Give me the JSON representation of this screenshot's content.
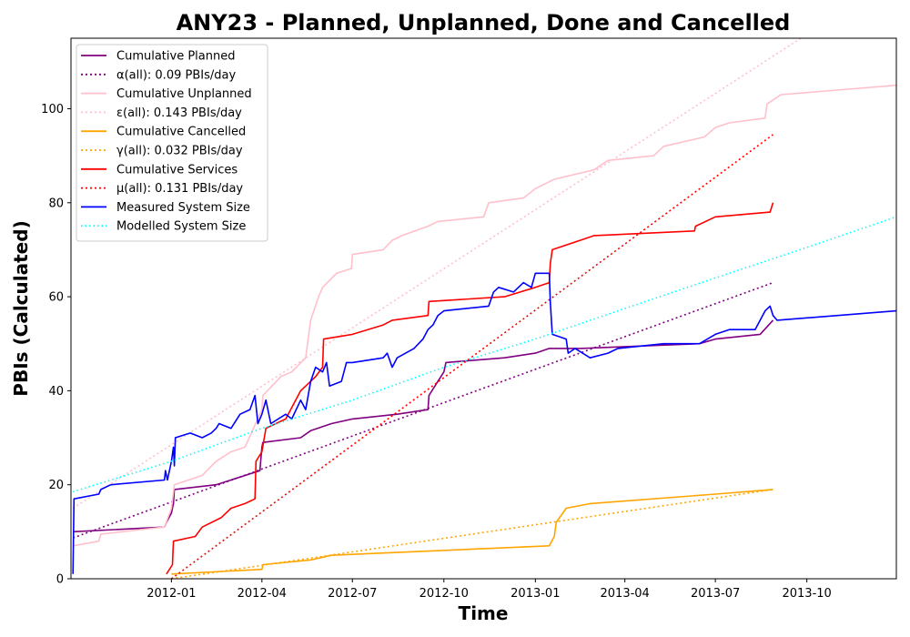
{
  "chart_data": {
    "type": "line",
    "title": "ANY23 - Planned, Unplanned, Done  and Cancelled",
    "xlabel": "Time",
    "ylabel": "PBIs (Calculated)",
    "xlim": [
      "2011-09-22",
      "2013-12-30"
    ],
    "ylim": [
      0,
      115
    ],
    "x_ticks": [
      "2012-01",
      "2012-04",
      "2012-07",
      "2012-10",
      "2013-01",
      "2013-04",
      "2013-07",
      "2013-10"
    ],
    "x_tick_dates": [
      "2012-01-01",
      "2012-04-01",
      "2012-07-01",
      "2012-10-01",
      "2013-01-01",
      "2013-04-01",
      "2013-07-01",
      "2013-10-01"
    ],
    "y_ticks": [
      0,
      20,
      40,
      60,
      80,
      100
    ],
    "grid": false,
    "legend_position": "top-left",
    "series": [
      {
        "name": "Cumulative Planned",
        "color": "#800080",
        "style": "solid",
        "points": [
          [
            "2011-09-24",
            10
          ],
          [
            "2011-12-25",
            11
          ],
          [
            "2011-12-27",
            12
          ],
          [
            "2012-01-01",
            14
          ],
          [
            "2012-01-03",
            16
          ],
          [
            "2012-01-04",
            19
          ],
          [
            "2012-02-15",
            20
          ],
          [
            "2012-03-30",
            23
          ],
          [
            "2012-04-01",
            28
          ],
          [
            "2012-04-02",
            29
          ],
          [
            "2012-05-10",
            30
          ],
          [
            "2012-05-20",
            31.5
          ],
          [
            "2012-06-10",
            33
          ],
          [
            "2012-07-01",
            34
          ],
          [
            "2012-08-15",
            35
          ],
          [
            "2012-09-15",
            36
          ],
          [
            "2012-09-16",
            39
          ],
          [
            "2012-09-25",
            42
          ],
          [
            "2012-10-01",
            44
          ],
          [
            "2012-10-03",
            46
          ],
          [
            "2012-11-01",
            46.5
          ],
          [
            "2012-12-01",
            47
          ],
          [
            "2013-01-01",
            48
          ],
          [
            "2013-01-15",
            49
          ],
          [
            "2013-02-15",
            49
          ],
          [
            "2013-06-15",
            50
          ],
          [
            "2013-07-01",
            51
          ],
          [
            "2013-08-15",
            52
          ],
          [
            "2013-08-28",
            55
          ]
        ]
      },
      {
        "name": "α(all): 0.09 PBIs/day",
        "color": "#800080",
        "style": "dotted",
        "points": [
          [
            "2011-09-24",
            8.7
          ],
          [
            "2013-08-28",
            63
          ]
        ]
      },
      {
        "name": "Cumulative Unplanned",
        "color": "#ffc0cb",
        "style": "solid",
        "points": [
          [
            "2011-09-24",
            7
          ],
          [
            "2011-10-20",
            8
          ],
          [
            "2011-10-22",
            9.5
          ],
          [
            "2011-12-25",
            11
          ],
          [
            "2012-01-01",
            15
          ],
          [
            "2012-01-04",
            20
          ],
          [
            "2012-02-01",
            22
          ],
          [
            "2012-02-15",
            25
          ],
          [
            "2012-03-01",
            27
          ],
          [
            "2012-03-15",
            28
          ],
          [
            "2012-04-01",
            36
          ],
          [
            "2012-04-02",
            39
          ],
          [
            "2012-04-20",
            43
          ],
          [
            "2012-05-01",
            44
          ],
          [
            "2012-05-15",
            47
          ],
          [
            "2012-05-20",
            55
          ],
          [
            "2012-05-28",
            60
          ],
          [
            "2012-06-01",
            62
          ],
          [
            "2012-06-15",
            65
          ],
          [
            "2012-06-30",
            66
          ],
          [
            "2012-07-01",
            69
          ],
          [
            "2012-08-01",
            70
          ],
          [
            "2012-08-10",
            72
          ],
          [
            "2012-08-20",
            73
          ],
          [
            "2012-09-15",
            75
          ],
          [
            "2012-09-25",
            76
          ],
          [
            "2012-11-10",
            77
          ],
          [
            "2012-11-15",
            80
          ],
          [
            "2012-12-20",
            81
          ],
          [
            "2013-01-01",
            83
          ],
          [
            "2013-01-20",
            85
          ],
          [
            "2013-03-01",
            87
          ],
          [
            "2013-03-15",
            89
          ],
          [
            "2013-04-30",
            90
          ],
          [
            "2013-05-10",
            92
          ],
          [
            "2013-06-20",
            94
          ],
          [
            "2013-07-01",
            96
          ],
          [
            "2013-07-15",
            97
          ],
          [
            "2013-08-20",
            98
          ],
          [
            "2013-08-22",
            101
          ],
          [
            "2013-09-05",
            103
          ],
          [
            "2013-12-30",
            105
          ]
        ]
      },
      {
        "name": "ε(all): 0.143 PBIs/day",
        "color": "#ffc0cb",
        "style": "dotted",
        "points": [
          [
            "2011-09-24",
            15
          ],
          [
            "2013-09-25",
            115
          ]
        ]
      },
      {
        "name": "Cumulative Cancelled",
        "color": "#ffa500",
        "style": "solid",
        "points": [
          [
            "2012-01-01",
            1
          ],
          [
            "2012-04-01",
            2
          ],
          [
            "2012-04-02",
            3
          ],
          [
            "2012-05-20",
            4
          ],
          [
            "2012-06-10",
            5
          ],
          [
            "2013-01-15",
            7
          ],
          [
            "2013-01-20",
            9
          ],
          [
            "2013-01-22",
            12
          ],
          [
            "2013-02-01",
            15
          ],
          [
            "2013-02-25",
            16
          ],
          [
            "2013-07-01",
            18
          ],
          [
            "2013-08-28",
            19
          ]
        ]
      },
      {
        "name": "γ(all): 0.032 PBIs/day",
        "color": "#ffa500",
        "style": "dotted",
        "points": [
          [
            "2012-01-01",
            0
          ],
          [
            "2013-08-28",
            19
          ]
        ]
      },
      {
        "name": "Cumulative Services",
        "color": "#ff0000",
        "style": "solid",
        "points": [
          [
            "2011-12-27",
            1
          ],
          [
            "2012-01-02",
            3
          ],
          [
            "2012-01-03",
            8
          ],
          [
            "2012-01-25",
            9
          ],
          [
            "2012-02-01",
            11
          ],
          [
            "2012-02-20",
            13
          ],
          [
            "2012-03-01",
            15
          ],
          [
            "2012-03-15",
            16
          ],
          [
            "2012-03-25",
            17
          ],
          [
            "2012-03-26",
            25
          ],
          [
            "2012-04-01",
            27
          ],
          [
            "2012-04-05",
            32
          ],
          [
            "2012-04-25",
            34
          ],
          [
            "2012-05-10",
            40
          ],
          [
            "2012-05-25",
            43
          ],
          [
            "2012-06-01",
            45
          ],
          [
            "2012-06-02",
            51
          ],
          [
            "2012-07-01",
            52
          ],
          [
            "2012-08-01",
            54
          ],
          [
            "2012-08-10",
            55
          ],
          [
            "2012-09-15",
            56
          ],
          [
            "2012-09-16",
            59
          ],
          [
            "2012-12-01",
            60
          ],
          [
            "2013-01-01",
            62
          ],
          [
            "2013-01-15",
            63
          ],
          [
            "2013-01-16",
            67
          ],
          [
            "2013-01-18",
            70
          ],
          [
            "2013-02-15",
            72
          ],
          [
            "2013-03-01",
            73
          ],
          [
            "2013-06-10",
            74
          ],
          [
            "2013-06-11",
            75
          ],
          [
            "2013-07-01",
            77
          ],
          [
            "2013-08-25",
            78
          ],
          [
            "2013-08-28",
            80
          ]
        ]
      },
      {
        "name": "μ(all): 0.131 PBIs/day",
        "color": "#ff0000",
        "style": "dotted",
        "points": [
          [
            "2012-01-01",
            0
          ],
          [
            "2013-08-28",
            94.5
          ]
        ]
      },
      {
        "name": "Measured System Size",
        "color": "#0000ff",
        "style": "solid",
        "points": [
          [
            "2011-09-24",
            1
          ],
          [
            "2011-09-25",
            17
          ],
          [
            "2011-10-20",
            18
          ],
          [
            "2011-10-22",
            19
          ],
          [
            "2011-11-01",
            20
          ],
          [
            "2011-12-25",
            21
          ],
          [
            "2011-12-26",
            23
          ],
          [
            "2011-12-28",
            21
          ],
          [
            "2012-01-01",
            25
          ],
          [
            "2012-01-03",
            28
          ],
          [
            "2012-01-04",
            24
          ],
          [
            "2012-01-05",
            30
          ],
          [
            "2012-01-20",
            31
          ],
          [
            "2012-02-01",
            30
          ],
          [
            "2012-02-10",
            31
          ],
          [
            "2012-02-15",
            32
          ],
          [
            "2012-02-18",
            33
          ],
          [
            "2012-03-01",
            32
          ],
          [
            "2012-03-10",
            35
          ],
          [
            "2012-03-20",
            36
          ],
          [
            "2012-03-25",
            39
          ],
          [
            "2012-03-28",
            33
          ],
          [
            "2012-04-01",
            35
          ],
          [
            "2012-04-05",
            38
          ],
          [
            "2012-04-10",
            33
          ],
          [
            "2012-04-25",
            35
          ],
          [
            "2012-05-01",
            34
          ],
          [
            "2012-05-10",
            38
          ],
          [
            "2012-05-15",
            36
          ],
          [
            "2012-05-20",
            42
          ],
          [
            "2012-05-25",
            45
          ],
          [
            "2012-06-01",
            44
          ],
          [
            "2012-06-05",
            46
          ],
          [
            "2012-06-08",
            41
          ],
          [
            "2012-06-20",
            42
          ],
          [
            "2012-06-25",
            46
          ],
          [
            "2012-07-01",
            46
          ],
          [
            "2012-08-01",
            47
          ],
          [
            "2012-08-05",
            48
          ],
          [
            "2012-08-10",
            45
          ],
          [
            "2012-08-15",
            47
          ],
          [
            "2012-09-01",
            49
          ],
          [
            "2012-09-10",
            51
          ],
          [
            "2012-09-15",
            53
          ],
          [
            "2012-09-20",
            54
          ],
          [
            "2012-09-25",
            56
          ],
          [
            "2012-10-01",
            57
          ],
          [
            "2012-11-15",
            58
          ],
          [
            "2012-11-20",
            61
          ],
          [
            "2012-11-25",
            62
          ],
          [
            "2012-12-10",
            61
          ],
          [
            "2012-12-20",
            63
          ],
          [
            "2012-12-28",
            62
          ],
          [
            "2013-01-01",
            65
          ],
          [
            "2013-01-15",
            65
          ],
          [
            "2013-01-16",
            59
          ],
          [
            "2013-01-18",
            52
          ],
          [
            "2013-02-01",
            51
          ],
          [
            "2013-02-03",
            48
          ],
          [
            "2013-02-10",
            49
          ],
          [
            "2013-02-25",
            47
          ],
          [
            "2013-03-15",
            48
          ],
          [
            "2013-03-25",
            49
          ],
          [
            "2013-05-10",
            50
          ],
          [
            "2013-06-15",
            50
          ],
          [
            "2013-07-01",
            52
          ],
          [
            "2013-07-15",
            53
          ],
          [
            "2013-08-10",
            53
          ],
          [
            "2013-08-20",
            57
          ],
          [
            "2013-08-25",
            58
          ],
          [
            "2013-08-28",
            56
          ],
          [
            "2013-09-01",
            55
          ],
          [
            "2013-12-30",
            57
          ]
        ]
      },
      {
        "name": "Modelled System Size",
        "color": "#00ffff",
        "style": "dotted",
        "points": [
          [
            "2011-09-24",
            18.5
          ],
          [
            "2012-01-01",
            25
          ],
          [
            "2012-04-01",
            32
          ],
          [
            "2012-07-01",
            38
          ],
          [
            "2012-10-01",
            45
          ],
          [
            "2013-01-01",
            51
          ],
          [
            "2013-04-01",
            57.5
          ],
          [
            "2013-07-01",
            64
          ],
          [
            "2013-10-01",
            70.5
          ],
          [
            "2013-12-30",
            77
          ]
        ]
      }
    ]
  }
}
